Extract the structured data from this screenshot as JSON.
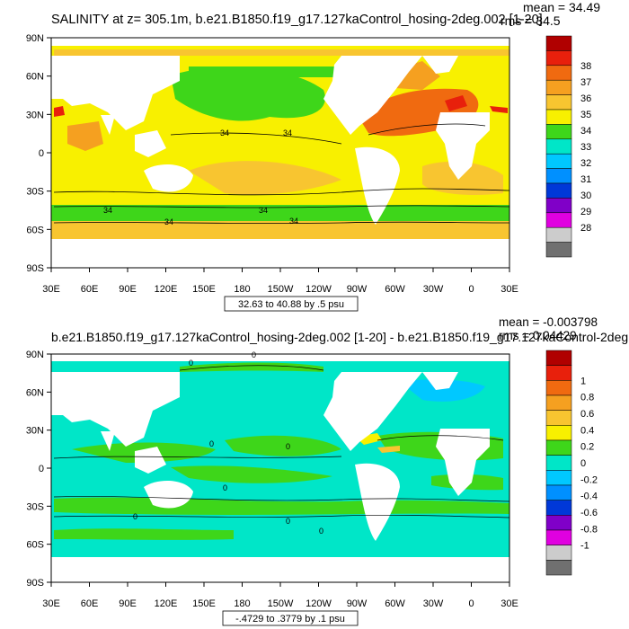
{
  "panels": [
    {
      "title": "SALINITY at z= 305.1m, b.e21.B1850.f19_g17.127kaControl_hosing-2deg.002 [1-20]",
      "stats": [
        "mean = 34.49",
        "rms = 34.5"
      ],
      "range_label": "32.63 to 40.88 by .5 psu",
      "lat_labels": [
        "90N",
        "60N",
        "30N",
        "0",
        "30S",
        "60S",
        "90S"
      ],
      "lon_labels": [
        "30E",
        "60E",
        "90E",
        "120E",
        "150E",
        "180",
        "150W",
        "120W",
        "90W",
        "60W",
        "30W",
        "0",
        "30E"
      ],
      "colorbar": {
        "labels": [
          "38",
          "37",
          "36",
          "35",
          "34",
          "33",
          "32",
          "31",
          "30",
          "29",
          "28"
        ],
        "colors": [
          "#b00000",
          "#e8200c",
          "#f06a10",
          "#f5a020",
          "#f8c530",
          "#f8f000",
          "#3ed61a",
          "#00e6c8",
          "#00c8ff",
          "#0090ff",
          "#0038d8",
          "#8000c8",
          "#e000e0",
          "#cccccc",
          "#707070"
        ]
      },
      "contour_labels": [
        "34",
        "34",
        "34",
        "34",
        "34",
        "34"
      ]
    },
    {
      "title": "b.e21.B1850.f19_g17.127kaControl_hosing-2deg.002 [1-20] - b.e21.B1850.f19_g17.127kaControl-2deg.",
      "stats": [
        "mean = -0.003798",
        "rms = 0.04429"
      ],
      "range_label": "-.4729 to .3779 by .1 psu",
      "lat_labels": [
        "90N",
        "60N",
        "30N",
        "0",
        "30S",
        "60S",
        "90S"
      ],
      "lon_labels": [
        "30E",
        "60E",
        "90E",
        "120E",
        "150E",
        "180",
        "150W",
        "120W",
        "90W",
        "60W",
        "30W",
        "0",
        "30E"
      ],
      "colorbar": {
        "labels": [
          "1",
          "0.8",
          "0.6",
          "0.4",
          "0.2",
          "0",
          "-0.2",
          "-0.4",
          "-0.6",
          "-0.8",
          "-1"
        ],
        "colors": [
          "#b00000",
          "#e8200c",
          "#f06a10",
          "#f5a020",
          "#f8c530",
          "#f8f000",
          "#3ed61a",
          "#00e6c8",
          "#00c8ff",
          "#0090ff",
          "#0038d8",
          "#8000c8",
          "#e000e0",
          "#cccccc",
          "#707070"
        ]
      },
      "contour_labels": [
        "0",
        "0",
        "0",
        "0",
        "0",
        "0",
        "0",
        "0"
      ]
    }
  ]
}
